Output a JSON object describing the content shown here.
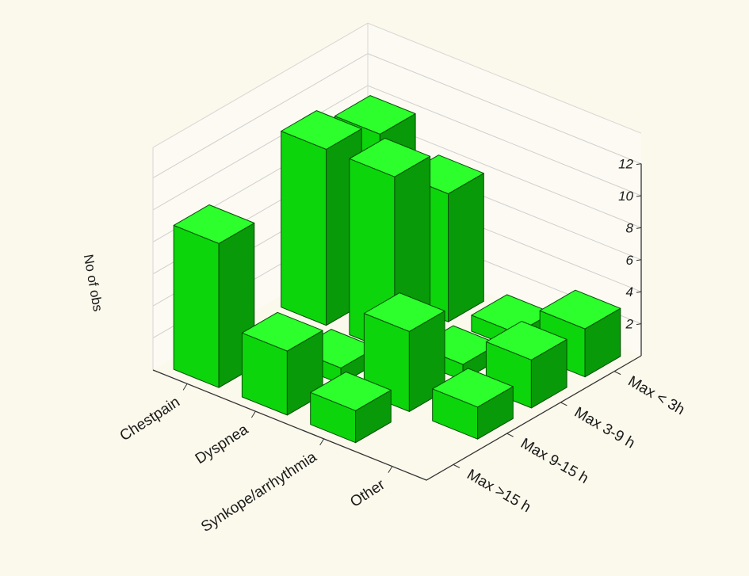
{
  "chart_data": {
    "type": "bar3d",
    "zlabel": "No of obs",
    "zticks": [
      2,
      4,
      6,
      8,
      10,
      12
    ],
    "zlim": [
      0,
      12
    ],
    "symptoms": [
      "Chestpain",
      "Dyspnea",
      "Synkope/arrhythmia",
      "Other"
    ],
    "delays": [
      "Max  < 3h",
      "Max 3-9 h",
      "Max 9-15 h",
      "Max >15 h"
    ],
    "values": [
      [
        10,
        8,
        1,
        3
      ],
      [
        11,
        11,
        1,
        3
      ],
      [
        0,
        1,
        5,
        2
      ],
      [
        9,
        4,
        2,
        0
      ]
    ],
    "values_layout": "values[delayIndex][symptomIndex]",
    "bar_color": "#1ed81e",
    "grid": true
  }
}
